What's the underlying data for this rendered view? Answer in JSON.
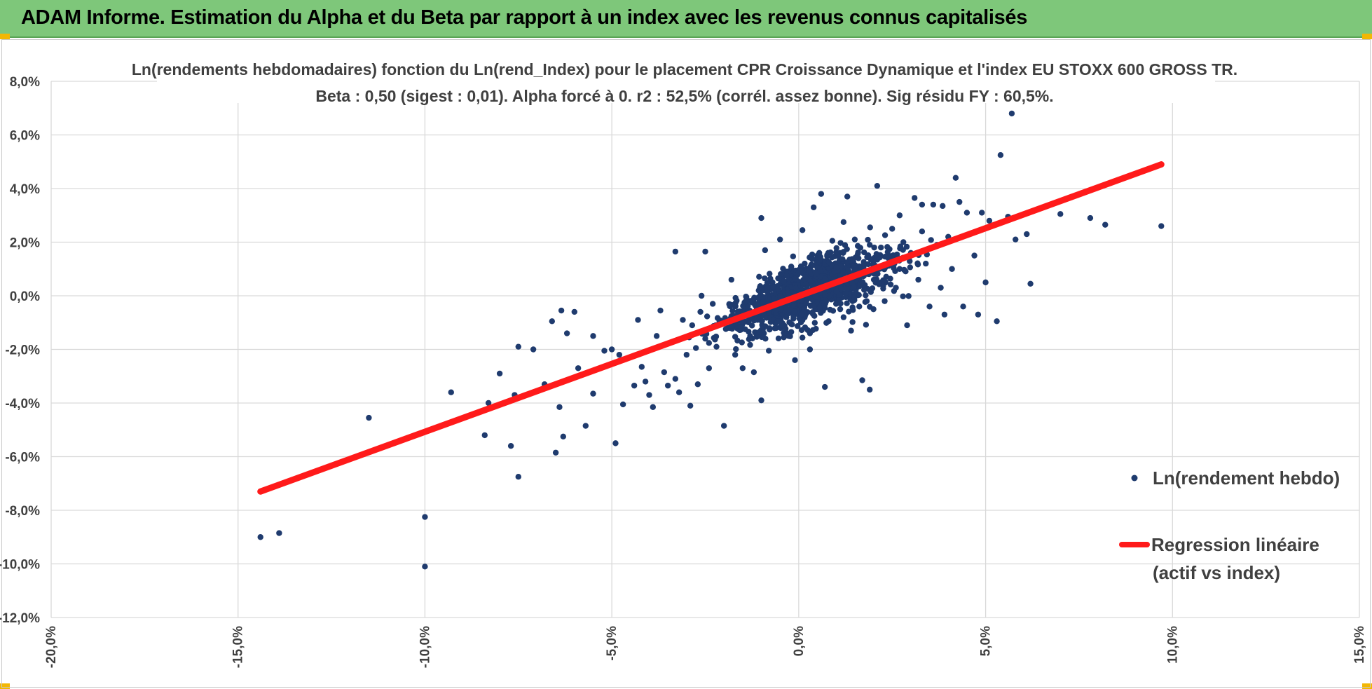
{
  "banner": {
    "title": "ADAM Informe. Estimation du Alpha et du Beta par rapport à un index avec les revenus connus capitalisés"
  },
  "colors": {
    "banner": "#7ec77a",
    "points": "#1f3b6e",
    "regression": "#ff1a1a",
    "grid": "#d9d9d9",
    "corner": "#f2b705"
  },
  "chart_data": {
    "type": "scatter",
    "title_lines": [
      "Ln(rendements hebdomadaires) fonction du Ln(rend_Index) pour le placement CPR Croissance Dynamique  et l'index EU STOXX 600 GROSS TR.",
      "Beta : 0,50 (sigest : 0,01). Alpha forcé à 0. r2 : 52,5% (corrél. assez bonne). Sig résidu FY : 60,5%."
    ],
    "xlim": [
      -20,
      15
    ],
    "ylim": [
      -12,
      8
    ],
    "x_ticks": [
      "-20,0%",
      "-15,0%",
      "-10,0%",
      "-5,0%",
      "0,0%",
      "5,0%",
      "10,0%",
      "15,0%"
    ],
    "y_ticks": [
      "8,0%",
      "6,0%",
      "4,0%",
      "2,0%",
      "0,0%",
      "-2,0%",
      "-4,0%",
      "-6,0%",
      "-8,0%",
      "-10,0%",
      "-12,0%"
    ],
    "grid": true,
    "legend_position": "right",
    "legend": [
      {
        "label": "Ln(rendement hebdo)",
        "kind": "point"
      },
      {
        "label": "Regression linéaire",
        "label2": "(actif vs index)",
        "kind": "line"
      }
    ],
    "series": [
      {
        "name": "Ln(rendement hebdo)",
        "kind": "scatter",
        "points": [
          [
            -14.4,
            -9.0
          ],
          [
            -13.9,
            -8.85
          ],
          [
            -11.5,
            -4.55
          ],
          [
            -10.0,
            -8.25
          ],
          [
            -10.0,
            -10.1
          ],
          [
            -9.3,
            -3.6
          ],
          [
            -8.3,
            -4.0
          ],
          [
            -8.4,
            -5.2
          ],
          [
            -7.7,
            -5.6
          ],
          [
            -7.5,
            -6.75
          ],
          [
            -7.5,
            -1.9
          ],
          [
            -7.6,
            -3.7
          ],
          [
            -7.1,
            -2.0
          ],
          [
            -6.6,
            -0.95
          ],
          [
            -6.5,
            -5.85
          ],
          [
            -6.3,
            -5.25
          ],
          [
            -6.4,
            -4.15
          ],
          [
            -6.2,
            -1.4
          ],
          [
            -6.0,
            -0.6
          ],
          [
            -6.35,
            -0.55
          ],
          [
            -5.9,
            -2.7
          ],
          [
            -5.7,
            -4.85
          ],
          [
            -5.5,
            -1.5
          ],
          [
            -5.5,
            -3.65
          ],
          [
            -5.2,
            -2.05
          ],
          [
            -5.0,
            -2.0
          ],
          [
            -4.9,
            -5.5
          ],
          [
            -4.8,
            -2.2
          ],
          [
            -4.7,
            -4.05
          ],
          [
            -4.4,
            -3.35
          ],
          [
            -4.3,
            -0.9
          ],
          [
            -4.2,
            -2.65
          ],
          [
            -4.0,
            -3.7
          ],
          [
            -4.1,
            -3.2
          ],
          [
            -3.8,
            -1.5
          ],
          [
            -3.7,
            -0.55
          ],
          [
            -3.6,
            -2.85
          ],
          [
            -3.5,
            -3.35
          ],
          [
            -3.3,
            -3.1
          ],
          [
            -3.2,
            -3.6
          ],
          [
            -3.1,
            -0.9
          ],
          [
            -3.0,
            -2.2
          ],
          [
            -2.9,
            -4.1
          ],
          [
            -2.85,
            -1.1
          ],
          [
            -2.7,
            -3.3
          ],
          [
            -2.6,
            0.0
          ],
          [
            -2.5,
            -1.6
          ],
          [
            -2.4,
            -2.7
          ],
          [
            -2.3,
            -0.3
          ],
          [
            -2.2,
            -1.9
          ],
          [
            -2.0,
            -4.85
          ],
          [
            -1.9,
            -1.2
          ],
          [
            -1.8,
            0.6
          ],
          [
            -1.7,
            -2.2
          ],
          [
            -1.6,
            -1.25
          ],
          [
            -1.5,
            -2.7
          ],
          [
            -1.4,
            -0.3
          ],
          [
            -1.3,
            -1.5
          ],
          [
            -1.2,
            -2.85
          ],
          [
            -1.1,
            -0.9
          ],
          [
            -1.0,
            -3.9
          ],
          [
            -1.0,
            -0.2
          ],
          [
            -0.9,
            1.7
          ],
          [
            -0.8,
            -2.05
          ],
          [
            -0.7,
            0.5
          ],
          [
            -0.6,
            -1.2
          ],
          [
            -0.5,
            -0.4
          ],
          [
            -0.5,
            2.1
          ],
          [
            -0.4,
            -1.55
          ],
          [
            -0.3,
            0.9
          ],
          [
            -0.2,
            -0.2
          ],
          [
            -0.2,
            -1.05
          ],
          [
            -0.1,
            0.4
          ],
          [
            0.0,
            -0.7
          ],
          [
            0.1,
            2.45
          ],
          [
            0.1,
            1.0
          ],
          [
            0.2,
            -0.1
          ],
          [
            0.3,
            -1.4
          ],
          [
            0.4,
            3.3
          ],
          [
            0.4,
            0.6
          ],
          [
            0.5,
            -0.5
          ],
          [
            0.5,
            1.5
          ],
          [
            0.6,
            0.2
          ],
          [
            0.7,
            -3.4
          ],
          [
            0.7,
            1.05
          ],
          [
            0.8,
            -0.95
          ],
          [
            0.9,
            2.05
          ],
          [
            0.9,
            0.5
          ],
          [
            1.0,
            -0.3
          ],
          [
            1.1,
            1.6
          ],
          [
            1.1,
            0.8
          ],
          [
            1.2,
            2.75
          ],
          [
            1.3,
            0.0
          ],
          [
            1.3,
            1.25
          ],
          [
            1.4,
            -1.3
          ],
          [
            1.5,
            2.1
          ],
          [
            1.5,
            0.6
          ],
          [
            1.6,
            1.4
          ],
          [
            1.7,
            -3.15
          ],
          [
            1.8,
            0.9
          ],
          [
            1.9,
            1.9
          ],
          [
            2.0,
            -0.5
          ],
          [
            2.0,
            1.2
          ],
          [
            2.1,
            4.1
          ],
          [
            2.2,
            0.5
          ],
          [
            2.2,
            1.8
          ],
          [
            2.3,
            -0.2
          ],
          [
            2.4,
            1.4
          ],
          [
            2.5,
            2.5
          ],
          [
            2.6,
            0.3
          ],
          [
            2.7,
            1.0
          ],
          [
            2.8,
            2.0
          ],
          [
            2.9,
            -1.1
          ],
          [
            3.0,
            1.6
          ],
          [
            3.1,
            3.65
          ],
          [
            3.2,
            0.6
          ],
          [
            3.3,
            2.4
          ],
          [
            3.4,
            1.2
          ],
          [
            3.5,
            -0.4
          ],
          [
            3.6,
            3.4
          ],
          [
            3.7,
            1.9
          ],
          [
            3.8,
            0.3
          ],
          [
            3.9,
            -0.7
          ],
          [
            4.0,
            2.2
          ],
          [
            4.1,
            1.0
          ],
          [
            4.2,
            4.4
          ],
          [
            4.3,
            3.5
          ],
          [
            4.4,
            -0.4
          ],
          [
            4.5,
            3.1
          ],
          [
            4.7,
            1.5
          ],
          [
            4.8,
            -0.7
          ],
          [
            5.0,
            0.5
          ],
          [
            5.1,
            2.8
          ],
          [
            5.3,
            -0.95
          ],
          [
            5.4,
            5.25
          ],
          [
            5.6,
            2.95
          ],
          [
            5.7,
            6.8
          ],
          [
            5.8,
            2.1
          ],
          [
            6.1,
            2.3
          ],
          [
            6.2,
            0.45
          ],
          [
            7.0,
            3.05
          ],
          [
            7.8,
            2.9
          ],
          [
            8.2,
            2.65
          ],
          [
            9.7,
            2.6
          ],
          [
            -8.0,
            -2.9
          ],
          [
            -3.9,
            -4.15
          ],
          [
            -6.8,
            -3.3
          ],
          [
            1.9,
            -3.5
          ],
          [
            -0.1,
            -2.4
          ],
          [
            0.3,
            -2.0
          ],
          [
            2.7,
            3.0
          ],
          [
            -1.0,
            2.9
          ],
          [
            4.9,
            3.1
          ],
          [
            0.6,
            3.8
          ],
          [
            1.3,
            3.7
          ],
          [
            3.3,
            3.4
          ],
          [
            3.85,
            3.35
          ],
          [
            -2.5,
            1.65
          ],
          [
            -3.3,
            1.65
          ]
        ]
      },
      {
        "name": "Regression linéaire",
        "kind": "line",
        "points": [
          [
            -14.4,
            -7.3
          ],
          [
            9.7,
            4.9
          ]
        ]
      }
    ]
  }
}
